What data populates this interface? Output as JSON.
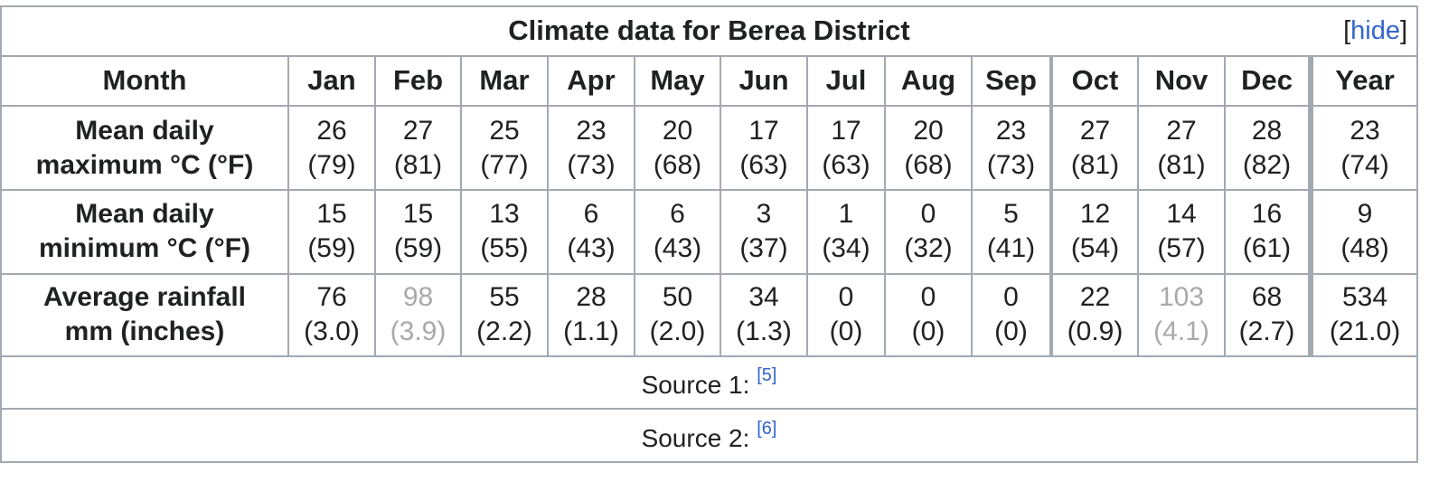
{
  "caption": {
    "title": "Climate data for Berea District",
    "hide_open": "[",
    "hide_label": "hide",
    "hide_close": "]"
  },
  "header": {
    "label": "Month",
    "months": [
      "Jan",
      "Feb",
      "Mar",
      "Apr",
      "May",
      "Jun",
      "Jul",
      "Aug",
      "Sep",
      "Oct",
      "Nov",
      "Dec"
    ],
    "year": "Year"
  },
  "rows": [
    {
      "label_line1": "Mean daily",
      "label_line2": "maximum °C (°F)",
      "cells": [
        {
          "c": "26",
          "f": "(79)"
        },
        {
          "c": "27",
          "f": "(81)"
        },
        {
          "c": "25",
          "f": "(77)"
        },
        {
          "c": "23",
          "f": "(73)"
        },
        {
          "c": "20",
          "f": "(68)"
        },
        {
          "c": "17",
          "f": "(63)"
        },
        {
          "c": "17",
          "f": "(63)"
        },
        {
          "c": "20",
          "f": "(68)"
        },
        {
          "c": "23",
          "f": "(73)"
        },
        {
          "c": "27",
          "f": "(81)"
        },
        {
          "c": "27",
          "f": "(81)"
        },
        {
          "c": "28",
          "f": "(82)"
        }
      ],
      "year": {
        "c": "23",
        "f": "(74)"
      }
    },
    {
      "label_line1": "Mean daily",
      "label_line2": "minimum °C (°F)",
      "cells": [
        {
          "c": "15",
          "f": "(59)"
        },
        {
          "c": "15",
          "f": "(59)"
        },
        {
          "c": "13",
          "f": "(55)"
        },
        {
          "c": "6",
          "f": "(43)"
        },
        {
          "c": "6",
          "f": "(43)"
        },
        {
          "c": "3",
          "f": "(37)"
        },
        {
          "c": "1",
          "f": "(34)"
        },
        {
          "c": "0",
          "f": "(32)"
        },
        {
          "c": "5",
          "f": "(41)"
        },
        {
          "c": "12",
          "f": "(54)"
        },
        {
          "c": "14",
          "f": "(57)"
        },
        {
          "c": "16",
          "f": "(61)"
        }
      ],
      "year": {
        "c": "9",
        "f": "(48)"
      }
    },
    {
      "label_line1": "Average rainfall",
      "label_line2": "mm (inches)",
      "cells": [
        {
          "c": "76",
          "f": "(3.0)"
        },
        {
          "c": "98",
          "f": "(3.9)"
        },
        {
          "c": "55",
          "f": "(2.2)"
        },
        {
          "c": "28",
          "f": "(1.1)"
        },
        {
          "c": "50",
          "f": "(2.0)"
        },
        {
          "c": "34",
          "f": "(1.3)"
        },
        {
          "c": "0",
          "f": "(0)"
        },
        {
          "c": "0",
          "f": "(0)"
        },
        {
          "c": "0",
          "f": "(0)"
        },
        {
          "c": "22",
          "f": "(0.9)"
        },
        {
          "c": "103",
          "f": "(4.1)"
        },
        {
          "c": "68",
          "f": "(2.7)"
        }
      ],
      "year": {
        "c": "534",
        "f": "(21.0)"
      }
    }
  ],
  "sources": [
    {
      "label": "Source 1: ",
      "ref": "[5]"
    },
    {
      "label": "Source 2: ",
      "ref": "[6]"
    }
  ]
}
